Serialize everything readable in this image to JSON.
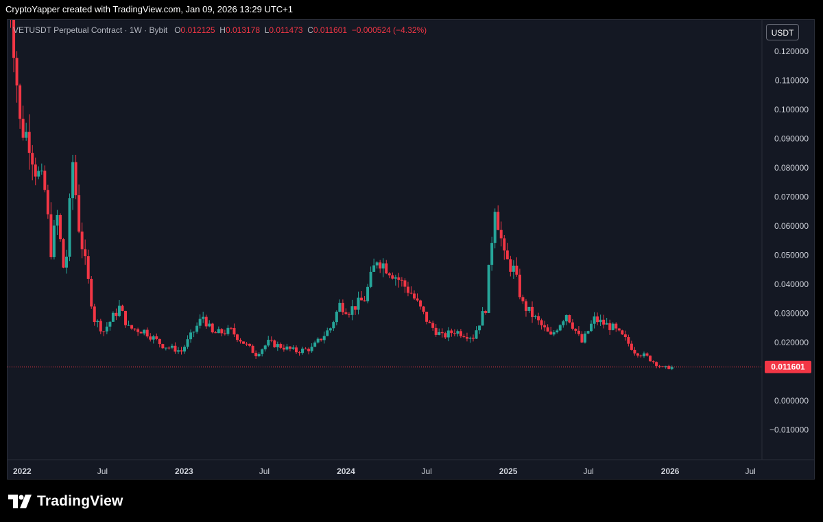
{
  "header": {
    "credit": "CryptoYapper created with TradingView.com, Jan 09, 2026 13:29 UTC+1"
  },
  "legend": {
    "symbol": "VETUSDT Perpetual Contract · 1W · Bybit",
    "o_label": "O",
    "o_value": "0.012125",
    "h_label": "H",
    "h_value": "0.013178",
    "l_label": "L",
    "l_value": "0.011473",
    "c_label": "C",
    "c_value": "0.011601",
    "change": "−0.000524 (−4.32%)"
  },
  "currency_button": "USDT",
  "footer": {
    "brand": "TradingView"
  },
  "colors": {
    "up": "#26a69a",
    "down": "#f23645",
    "background": "#141823",
    "axis_text": "#d1d4dc"
  },
  "chart_data": {
    "type": "candlestick",
    "interval": "1W",
    "last_price": 0.011601,
    "last_price_label": "0.011601",
    "y_axis": {
      "range": [
        -0.012,
        0.13
      ],
      "ticks": [
        "0.120000",
        "0.110000",
        "0.100000",
        "0.090000",
        "0.080000",
        "0.070000",
        "0.060000",
        "0.050000",
        "0.040000",
        "0.030000",
        "0.020000",
        "0.000000",
        "−0.010000"
      ],
      "tick_values": [
        0.12,
        0.11,
        0.1,
        0.09,
        0.08,
        0.07,
        0.06,
        0.05,
        0.04,
        0.03,
        0.02,
        0.0,
        -0.01
      ]
    },
    "x_axis": {
      "range": [
        "2021-11-29",
        "2026-07-27"
      ],
      "ticks": [
        "2022",
        "Jul",
        "2023",
        "Jul",
        "2024",
        "Jul",
        "2025",
        "Jul",
        "2026",
        "Jul"
      ],
      "tick_dates": [
        "2022-01-01",
        "2022-07-01",
        "2023-01-01",
        "2023-07-01",
        "2024-01-01",
        "2024-07-01",
        "2025-01-01",
        "2025-07-01",
        "2026-01-01",
        "2026-07-01"
      ]
    },
    "grid": false,
    "series_start": "2021-11-29",
    "anchors": [
      [
        "2021-11-29",
        0.15
      ],
      [
        "2021-12-13",
        0.124
      ],
      [
        "2021-12-27",
        0.095
      ],
      [
        "2022-01-17",
        0.09
      ],
      [
        "2022-01-31",
        0.08
      ],
      [
        "2022-02-21",
        0.072
      ],
      [
        "2022-03-07",
        0.052
      ],
      [
        "2022-03-21",
        0.063
      ],
      [
        "2022-04-04",
        0.046
      ],
      [
        "2022-04-11",
        0.05
      ],
      [
        "2022-04-25",
        0.082
      ],
      [
        "2022-05-09",
        0.06
      ],
      [
        "2022-05-23",
        0.047
      ],
      [
        "2022-06-13",
        0.028
      ],
      [
        "2022-07-04",
        0.024
      ],
      [
        "2022-08-08",
        0.032
      ],
      [
        "2022-08-29",
        0.025
      ],
      [
        "2022-10-03",
        0.024
      ],
      [
        "2022-11-14",
        0.019
      ],
      [
        "2022-12-26",
        0.017
      ],
      [
        "2023-02-13",
        0.029
      ],
      [
        "2023-03-06",
        0.023
      ],
      [
        "2023-04-17",
        0.024
      ],
      [
        "2023-06-12",
        0.016
      ],
      [
        "2023-07-10",
        0.02
      ],
      [
        "2023-09-11",
        0.017
      ],
      [
        "2023-10-16",
        0.018
      ],
      [
        "2023-11-27",
        0.025
      ],
      [
        "2023-12-18",
        0.033
      ],
      [
        "2024-01-08",
        0.031
      ],
      [
        "2024-02-12",
        0.035
      ],
      [
        "2024-03-11",
        0.049
      ],
      [
        "2024-04-15",
        0.044
      ],
      [
        "2024-05-27",
        0.037
      ],
      [
        "2024-07-08",
        0.026
      ],
      [
        "2024-08-05",
        0.022
      ],
      [
        "2024-09-02",
        0.024
      ],
      [
        "2024-10-14",
        0.022
      ],
      [
        "2024-11-11",
        0.032
      ],
      [
        "2024-12-02",
        0.068
      ],
      [
        "2024-12-23",
        0.049
      ],
      [
        "2025-01-13",
        0.045
      ],
      [
        "2025-02-03",
        0.033
      ],
      [
        "2025-03-10",
        0.027
      ],
      [
        "2025-04-07",
        0.022
      ],
      [
        "2025-05-12",
        0.03
      ],
      [
        "2025-06-16",
        0.02
      ],
      [
        "2025-07-14",
        0.028
      ],
      [
        "2025-08-25",
        0.025
      ],
      [
        "2025-09-22",
        0.021
      ],
      [
        "2025-10-13",
        0.017
      ],
      [
        "2025-11-10",
        0.015
      ],
      [
        "2025-12-15",
        0.0112
      ],
      [
        "2026-01-05",
        0.0116
      ]
    ]
  }
}
